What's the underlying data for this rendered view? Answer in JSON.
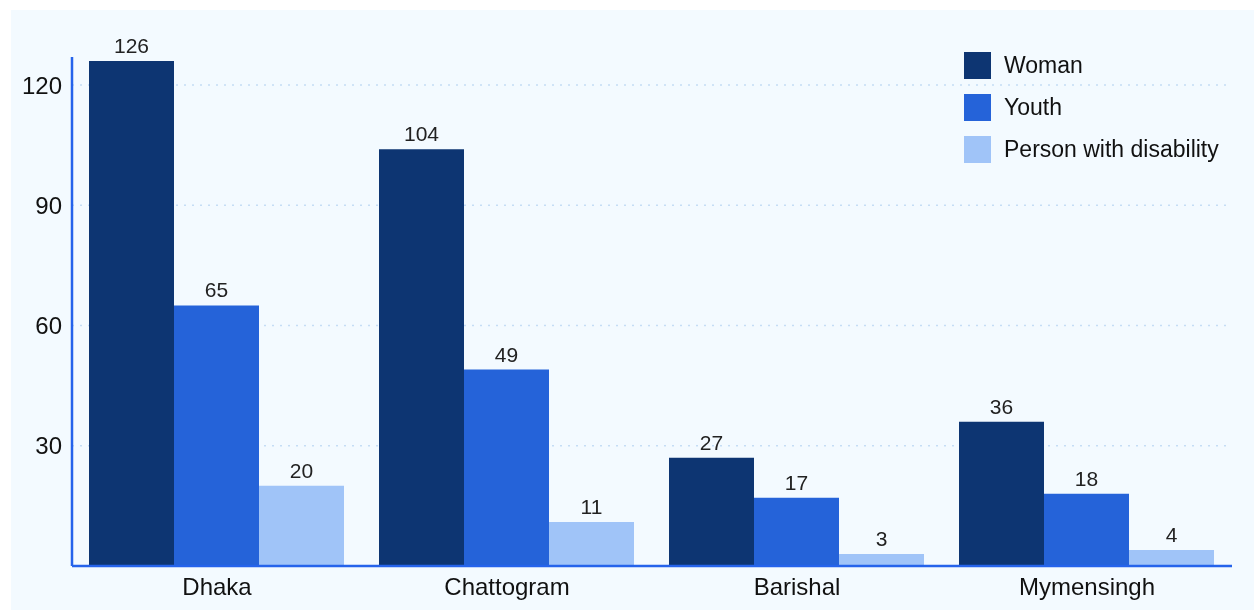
{
  "chart_data": {
    "type": "bar",
    "categories": [
      "Dhaka",
      "Chattogram",
      "Barishal",
      "Mymensingh"
    ],
    "series": [
      {
        "name": "Woman",
        "color": "#0d3572",
        "values": [
          126,
          104,
          27,
          36
        ]
      },
      {
        "name": "Youth",
        "color": "#2563d9",
        "values": [
          65,
          49,
          17,
          18
        ]
      },
      {
        "name": "Person with disability",
        "color": "#a0c4f8",
        "values": [
          20,
          11,
          3,
          4
        ]
      }
    ],
    "ylim": [
      0,
      127
    ],
    "yticks": [
      30,
      60,
      90,
      120
    ],
    "grid": "y",
    "legend": "top right",
    "data_labels": true
  }
}
